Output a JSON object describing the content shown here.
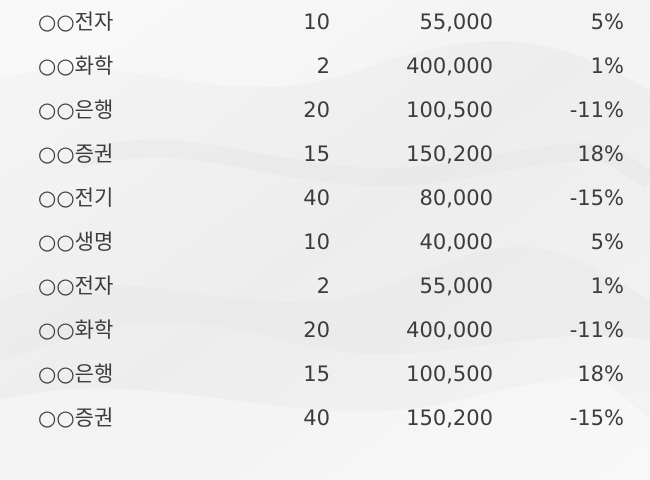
{
  "rows": [
    {
      "name": "○○전자",
      "qty": "10",
      "price": "55,000",
      "pct": "5%"
    },
    {
      "name": "○○화학",
      "qty": "2",
      "price": "400,000",
      "pct": "1%"
    },
    {
      "name": "○○은행",
      "qty": "20",
      "price": "100,500",
      "pct": "-11%"
    },
    {
      "name": "○○증권",
      "qty": "15",
      "price": "150,200",
      "pct": "18%"
    },
    {
      "name": "○○전기",
      "qty": "40",
      "price": "80,000",
      "pct": "-15%"
    },
    {
      "name": "○○생명",
      "qty": "10",
      "price": "40,000",
      "pct": "5%"
    },
    {
      "name": "○○전자",
      "qty": "2",
      "price": "55,000",
      "pct": "1%"
    },
    {
      "name": "○○화학",
      "qty": "20",
      "price": "400,000",
      "pct": "-11%"
    },
    {
      "name": "○○은행",
      "qty": "15",
      "price": "100,500",
      "pct": "18%"
    },
    {
      "name": "○○증권",
      "qty": "40",
      "price": "150,200",
      "pct": "-15%"
    }
  ]
}
